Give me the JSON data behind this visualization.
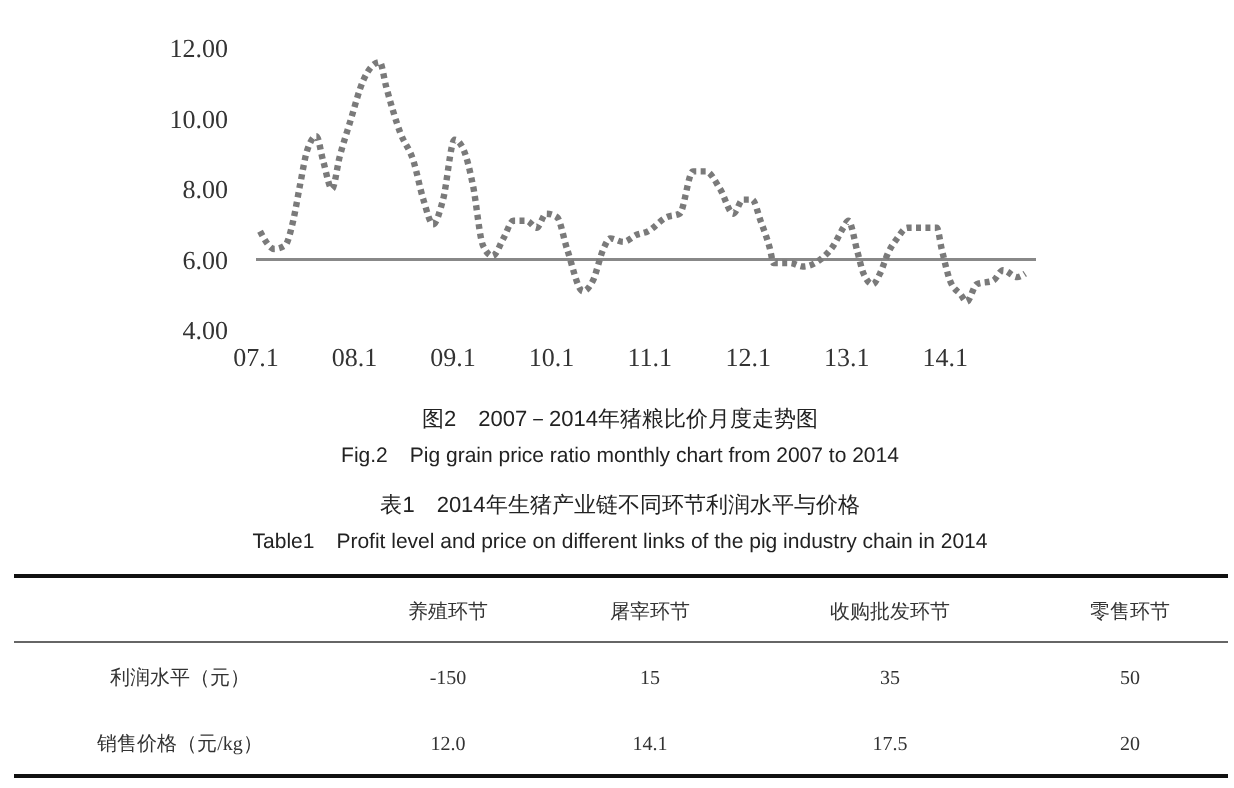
{
  "chart_data": [
    {
      "type": "line",
      "title": "图2　2007－2014年猪粮比价月度走势图",
      "subtitle": "Fig.2　Pig grain price ratio monthly chart from 2007 to 2014",
      "x": [
        "2007-01-16",
        "2007-03-10",
        "2007-04-19",
        "2007-05-19",
        "2007-06-13",
        "2007-07-10",
        "2007-08-13",
        "2007-09-07",
        "2007-10-10",
        "2007-11-07",
        "2007-12-16",
        "2008-02-04",
        "2008-04-04",
        "2008-04-28",
        "2008-06-19",
        "2008-08-07",
        "2008-09-13",
        "2008-10-19",
        "2008-11-25",
        "2009-01-07",
        "2009-02-10",
        "2009-03-16",
        "2009-04-22",
        "2009-05-28",
        "2009-07-07",
        "2009-08-13",
        "2009-10-01",
        "2009-11-07",
        "2009-12-13",
        "2010-01-22",
        "2010-02-28",
        "2010-04-28",
        "2010-06-04",
        "2010-07-13",
        "2010-08-07",
        "2010-09-25",
        "2010-11-13",
        "2010-12-25",
        "2011-03-04",
        "2011-04-22",
        "2011-06-10",
        "2011-07-28",
        "2011-09-19",
        "2011-11-07",
        "2011-12-13",
        "2012-01-16",
        "2012-02-16",
        "2012-03-22",
        "2012-04-04",
        "2012-06-04",
        "2012-07-22",
        "2012-09-25",
        "2012-11-13",
        "2012-12-19",
        "2013-01-07",
        "2013-02-10",
        "2013-03-04",
        "2013-04-07",
        "2013-05-04",
        "2013-06-04",
        "2013-07-07",
        "2013-08-13",
        "2013-10-13",
        "2013-12-01",
        "2013-12-19",
        "2014-01-19",
        "2014-02-28",
        "2014-03-22",
        "2014-04-28",
        "2014-06-28",
        "2014-08-04",
        "2014-09-25",
        "2014-10-25"
      ],
      "series": [
        {
          "color": "#7a7a7a",
          "values": [
            6.8,
            6.3,
            6.4,
            7.1,
            8.1,
            9.1,
            9.5,
            8.8,
            8.0,
            8.9,
            9.9,
            11.1,
            11.6,
            10.9,
            9.6,
            8.8,
            7.7,
            7.0,
            7.7,
            9.4,
            9.1,
            8.1,
            6.4,
            6.1,
            6.6,
            7.1,
            7.1,
            6.9,
            7.3,
            7.2,
            6.3,
            5.1,
            5.4,
            6.3,
            6.6,
            6.5,
            6.7,
            6.8,
            7.2,
            7.3,
            8.5,
            8.5,
            8.0,
            7.3,
            7.7,
            7.7,
            7.1,
            6.3,
            5.9,
            5.9,
            5.8,
            6.0,
            6.4,
            6.9,
            7.1,
            6.2,
            5.6,
            5.3,
            5.6,
            6.2,
            6.6,
            6.9,
            6.9,
            6.9,
            6.3,
            5.4,
            5.0,
            4.8,
            5.3,
            5.4,
            5.7,
            5.5,
            5.6
          ]
        }
      ],
      "xlim": [
        "2007-01-01",
        "2014-12-04"
      ],
      "xticks": [
        {
          "value": "2007-01-01",
          "label": "07.1"
        },
        {
          "value": "2008-01-01",
          "label": "08.1"
        },
        {
          "value": "2009-01-01",
          "label": "09.1"
        },
        {
          "value": "2010-01-01",
          "label": "10.1"
        },
        {
          "value": "2011-01-01",
          "label": "11.1"
        },
        {
          "value": "2012-01-01",
          "label": "12.1"
        },
        {
          "value": "2013-01-01",
          "label": "13.1"
        },
        {
          "value": "2014-01-01",
          "label": "14.1"
        }
      ],
      "ylim": [
        4,
        12
      ],
      "yticks": [
        {
          "value": 4,
          "label": "4.00"
        },
        {
          "value": 6,
          "label": "6.00"
        },
        {
          "value": 8,
          "label": "8.00"
        },
        {
          "value": 10,
          "label": "10.00"
        },
        {
          "value": 12,
          "label": "12.00"
        }
      ],
      "ref_lines": [
        {
          "axis": "y",
          "value": 6,
          "color": "#888888"
        }
      ],
      "line_style": "dotted",
      "grid": false
    },
    {
      "type": "other",
      "title": "表1　2014年生猪产业链不同环节利润水平与价格",
      "subtitle": "Table1　Profit level and price on different links of the pig industry chain in 2014",
      "categories": [
        "养殖环节",
        "屠宰环节",
        "收购批发环节",
        "零售环节"
      ],
      "y_categories": [
        "利润水平（元）",
        "销售价格（元/kg）"
      ],
      "cell_labels": [
        [
          "-150",
          "15",
          "35",
          "50"
        ],
        [
          "12.0",
          "14.1",
          "17.5",
          "20"
        ]
      ]
    }
  ]
}
